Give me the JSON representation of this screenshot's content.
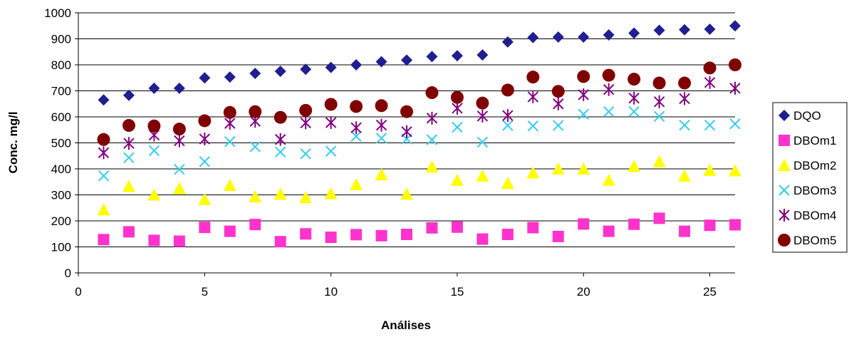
{
  "chart_data": {
    "type": "scatter",
    "title": "",
    "xlabel": "Análises",
    "ylabel": "Conc. mg/l",
    "xlim": [
      0,
      26
    ],
    "ylim": [
      0,
      1000
    ],
    "x_ticks": [
      0,
      5,
      10,
      15,
      20,
      25
    ],
    "y_ticks": [
      0,
      100,
      200,
      300,
      400,
      500,
      600,
      700,
      800,
      900,
      1000
    ],
    "grid": "horizontal",
    "legend_position": "right",
    "x": [
      1,
      2,
      3,
      4,
      5,
      6,
      7,
      8,
      9,
      10,
      11,
      12,
      13,
      14,
      15,
      16,
      17,
      18,
      19,
      20,
      21,
      22,
      23,
      24,
      25,
      26
    ],
    "series": [
      {
        "name": "DQO",
        "marker": "diamond",
        "color": "#1f1f8f",
        "values": [
          665,
          683,
          710,
          710,
          750,
          753,
          767,
          775,
          783,
          790,
          800,
          812,
          818,
          832,
          835,
          838,
          888,
          905,
          907,
          907,
          915,
          922,
          933,
          935,
          937,
          950
        ]
      },
      {
        "name": "DBOm1",
        "marker": "square",
        "color": "#ff33cc",
        "values": [
          128,
          158,
          125,
          122,
          175,
          160,
          186,
          120,
          150,
          137,
          147,
          143,
          148,
          173,
          176,
          130,
          148,
          174,
          140,
          188,
          160,
          187,
          210,
          160,
          183,
          185
        ]
      },
      {
        "name": "DBOm2",
        "marker": "triangle",
        "color": "#ffff00",
        "values": [
          243,
          333,
          300,
          325,
          283,
          337,
          293,
          303,
          290,
          305,
          340,
          378,
          303,
          408,
          357,
          373,
          345,
          385,
          400,
          400,
          357,
          410,
          428,
          373,
          395,
          393
        ]
      },
      {
        "name": "DBOm3",
        "marker": "x",
        "color": "#33ccee",
        "values": [
          373,
          443,
          470,
          398,
          428,
          505,
          485,
          465,
          458,
          468,
          525,
          518,
          515,
          512,
          560,
          503,
          567,
          565,
          567,
          610,
          620,
          620,
          602,
          568,
          568,
          573
        ]
      },
      {
        "name": "DBOm4",
        "marker": "star",
        "color": "#800080",
        "values": [
          462,
          498,
          530,
          508,
          515,
          575,
          583,
          513,
          577,
          578,
          558,
          568,
          543,
          595,
          633,
          603,
          605,
          677,
          650,
          685,
          705,
          672,
          658,
          670,
          732,
          710
        ]
      },
      {
        "name": "DBOm5",
        "marker": "circle",
        "color": "#800000",
        "values": [
          513,
          567,
          565,
          553,
          585,
          617,
          620,
          598,
          625,
          648,
          640,
          643,
          620,
          693,
          675,
          653,
          703,
          753,
          698,
          755,
          760,
          745,
          730,
          730,
          788,
          800
        ]
      }
    ]
  }
}
